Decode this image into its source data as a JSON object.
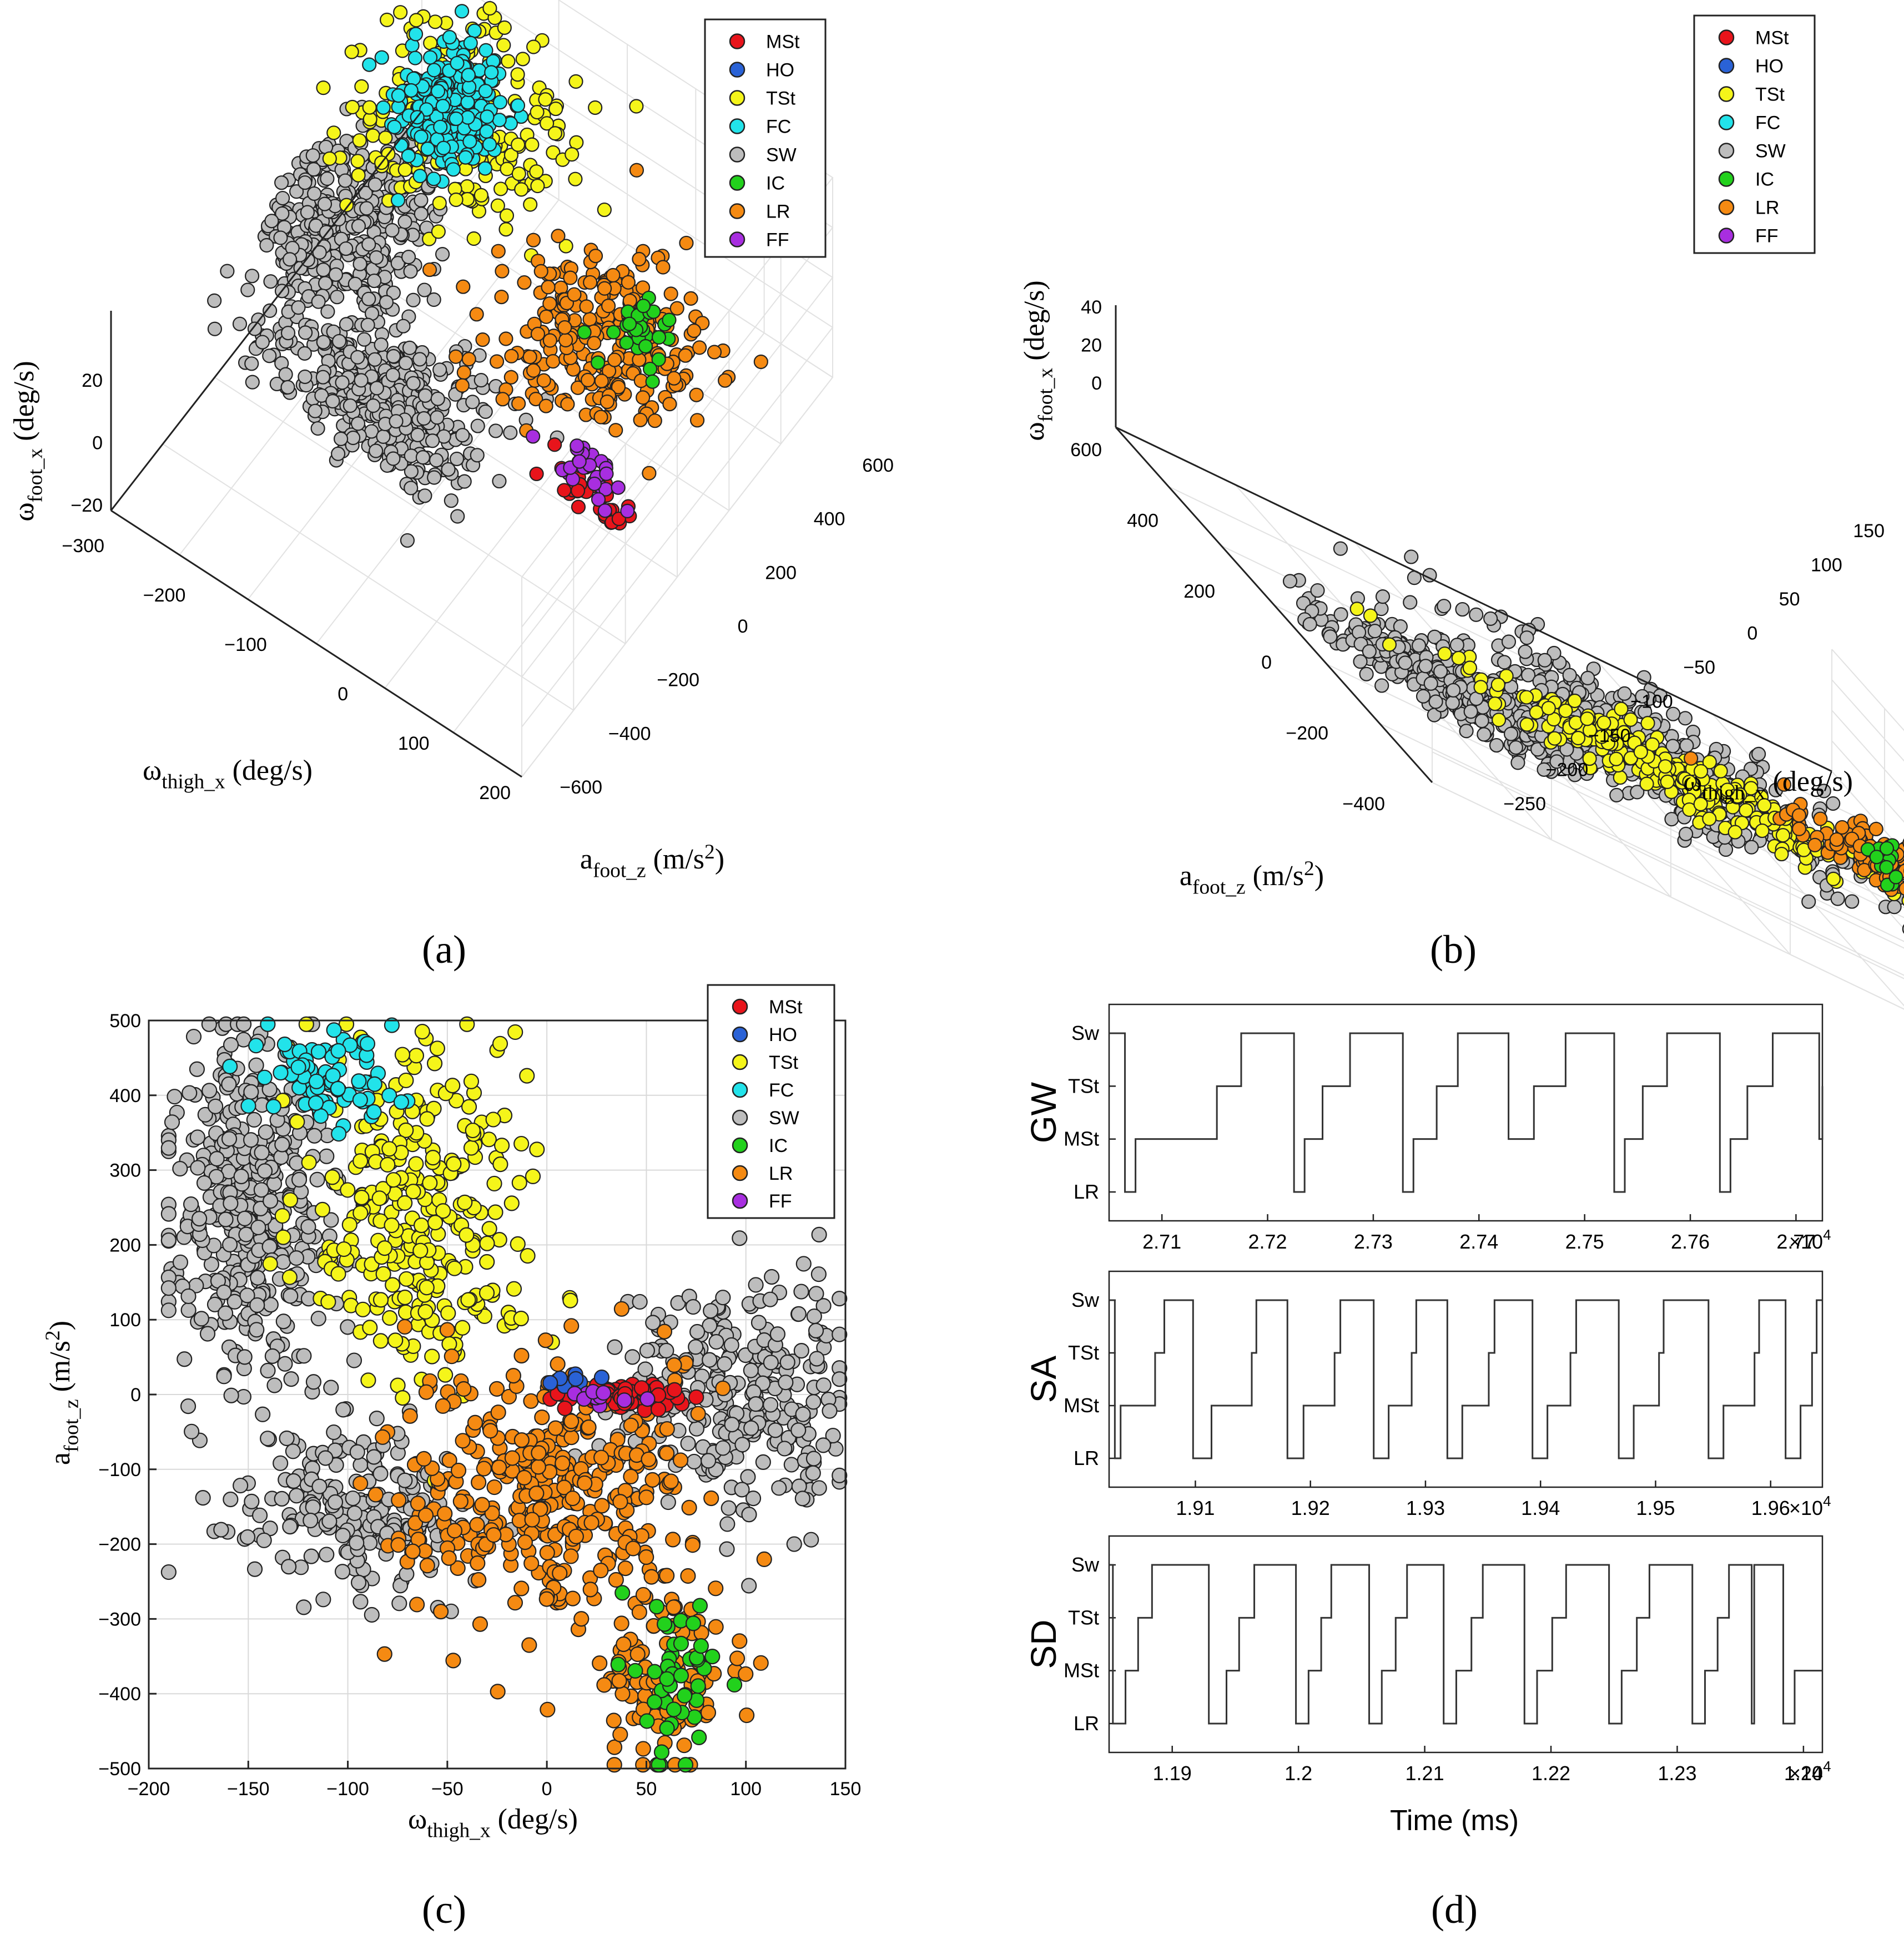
{
  "figure": {
    "panel_labels": [
      "(a)",
      "(b)",
      "(c)",
      "(d)"
    ],
    "legend": [
      {
        "label": "MSt",
        "color": "#e8141b"
      },
      {
        "label": "HO",
        "color": "#2a62d6"
      },
      {
        "label": "TSt",
        "color": "#f5f51a"
      },
      {
        "label": "FC",
        "color": "#22e3ea"
      },
      {
        "label": "SW",
        "color": "#bdbdbd"
      },
      {
        "label": "IC",
        "color": "#22d11c"
      },
      {
        "label": "LR",
        "color": "#f58a12"
      },
      {
        "label": "FF",
        "color": "#a82ee0"
      }
    ]
  },
  "chart_data": [
    {
      "id": "a",
      "type": "scatter",
      "projection": "3d",
      "xlabel": "ω",
      "xlabel_sub": "thigh_x",
      "xlabel_unit": " (deg/s)",
      "ylabel": "a",
      "ylabel_sub": "foot_z",
      "ylabel_unit": " (m/s",
      "ylabel_sup": "2",
      "ylabel_close": ")",
      "zlabel": "ω",
      "zlabel_sub": "foot_x",
      "zlabel_unit": " (deg/s)",
      "x_ticks": [
        "−300",
        "−200",
        "−100",
        "0",
        "100",
        "200"
      ],
      "y_ticks": [
        "600",
        "400",
        "200",
        "0",
        "−200",
        "−400",
        "−600"
      ],
      "z_ticks": [
        "20",
        "0",
        "−20"
      ],
      "xlim": [
        -300,
        200
      ],
      "ylim": [
        -600,
        600
      ],
      "zlim": [
        -25,
        35
      ],
      "clusters": [
        {
          "phase": "SW",
          "cx": -240,
          "cy": 100,
          "z": 0,
          "spread": [
            45,
            120
          ]
        },
        {
          "phase": "SW",
          "cx": -120,
          "cy": -120,
          "z": -10,
          "spread": [
            60,
            80
          ]
        },
        {
          "phase": "TSt",
          "cx": -160,
          "cy": 330,
          "z": 20,
          "spread": [
            60,
            120
          ]
        },
        {
          "phase": "FC",
          "cx": -200,
          "cy": 380,
          "z": 15,
          "spread": [
            25,
            60
          ]
        },
        {
          "phase": "LR",
          "cx": 60,
          "cy": 150,
          "z": 10,
          "spread": [
            60,
            110
          ]
        },
        {
          "phase": "IC",
          "cx": 90,
          "cy": 200,
          "z": 12,
          "spread": [
            20,
            40
          ]
        },
        {
          "phase": "MSt",
          "cx": 120,
          "cy": -80,
          "z": -5,
          "spread": [
            25,
            10
          ]
        },
        {
          "phase": "FF",
          "cx": 100,
          "cy": -40,
          "z": -4,
          "spread": [
            20,
            10
          ]
        }
      ]
    },
    {
      "id": "b",
      "type": "scatter",
      "projection": "3d",
      "xlabel": "ω",
      "xlabel_sub": "thigh_x",
      "xlabel_unit": " (deg/s)",
      "ylabel": "a",
      "ylabel_sub": "foot_z",
      "ylabel_unit": " (m/s",
      "ylabel_sup": "2",
      "ylabel_close": ")",
      "zlabel": "ω",
      "zlabel_sub": "foot_x",
      "zlabel_unit": " (deg/s)",
      "x_ticks": [
        "150",
        "100",
        "50",
        "0",
        "−50",
        "−100",
        "−150",
        "−200",
        "−250"
      ],
      "y_ticks": [
        "600",
        "400",
        "200",
        "0",
        "−200",
        "−400"
      ],
      "z_ticks": [
        "40",
        "20",
        "0"
      ],
      "xlim": [
        -250,
        150
      ],
      "ylim": [
        -400,
        600
      ],
      "zlim": [
        -10,
        45
      ],
      "clusters": [
        {
          "phase": "SW",
          "cx": -30,
          "cy": 50,
          "z": 0,
          "spread": [
            60,
            140
          ]
        },
        {
          "phase": "SW",
          "cx": -170,
          "cy": 250,
          "z": 5,
          "spread": [
            40,
            60
          ]
        },
        {
          "phase": "TSt",
          "cx": -80,
          "cy": 420,
          "z": 30,
          "spread": [
            60,
            60
          ]
        },
        {
          "phase": "LR",
          "cx": 80,
          "cy": 300,
          "z": 25,
          "spread": [
            40,
            60
          ]
        },
        {
          "phase": "IC",
          "cx": 90,
          "cy": 200,
          "z": 15,
          "spread": [
            10,
            30
          ]
        }
      ]
    },
    {
      "id": "c",
      "type": "scatter",
      "title": "",
      "xlabel": "ω",
      "xlabel_sub": "thigh_x",
      "xlabel_unit": " (deg/s)",
      "ylabel": "a",
      "ylabel_sub": "foot_z",
      "ylabel_unit": " (m/s",
      "ylabel_sup": "2",
      "ylabel_close": ")",
      "xlim": [
        -200,
        150
      ],
      "ylim": [
        -500,
        500
      ],
      "x_ticks": [
        -200,
        -150,
        -100,
        -50,
        0,
        50,
        100,
        150
      ],
      "y_ticks": [
        500,
        400,
        300,
        200,
        100,
        0,
        -100,
        -200,
        -300,
        -400,
        -500
      ],
      "x_tick_labels": [
        "−200",
        "−150",
        "−100",
        "−50",
        "0",
        "50",
        "100",
        "150"
      ],
      "y_tick_labels": [
        "500",
        "400",
        "300",
        "200",
        "100",
        "0",
        "−100",
        "−200",
        "−300",
        "−400",
        "−500"
      ],
      "grid": true,
      "legend_position": "top-right",
      "clusters": [
        {
          "phase": "SW",
          "cx": -150,
          "cy": 250,
          "sx": 20,
          "sy": 120,
          "n": 420
        },
        {
          "phase": "SW",
          "cx": -95,
          "cy": -150,
          "sx": 30,
          "sy": 60,
          "n": 220
        },
        {
          "phase": "SW",
          "cx": 95,
          "cy": 0,
          "sx": 28,
          "sy": 80,
          "n": 300
        },
        {
          "phase": "TSt",
          "cx": -65,
          "cy": 240,
          "sx": 28,
          "sy": 120,
          "n": 300
        },
        {
          "phase": "FC",
          "cx": -110,
          "cy": 420,
          "sx": 18,
          "sy": 35,
          "n": 80
        },
        {
          "phase": "LR",
          "cx": 0,
          "cy": -130,
          "sx": 35,
          "sy": 90,
          "n": 360
        },
        {
          "phase": "LR",
          "cx": 60,
          "cy": -380,
          "sx": 18,
          "sy": 60,
          "n": 110
        },
        {
          "phase": "IC",
          "cx": 65,
          "cy": -380,
          "sx": 12,
          "sy": 60,
          "n": 45
        },
        {
          "phase": "MSt",
          "cx": 35,
          "cy": 0,
          "sx": 15,
          "sy": 8,
          "n": 60
        },
        {
          "phase": "HO",
          "cx": 10,
          "cy": 20,
          "sx": 8,
          "sy": 5,
          "n": 8
        },
        {
          "phase": "FF",
          "cx": 25,
          "cy": -5,
          "sx": 10,
          "sy": 5,
          "n": 10
        }
      ]
    },
    {
      "id": "d",
      "type": "line",
      "subtitle": "step",
      "xlabel": "Time (ms)",
      "y_categories": [
        "LR",
        "MSt",
        "TSt",
        "Sw"
      ],
      "exponent_label": "×10",
      "exponent_power": "4",
      "rows": [
        {
          "name": "GW",
          "xlim": [
            2.705,
            2.7725
          ],
          "x_ticks": [
            "2.71",
            "2.72",
            "2.73",
            "2.74",
            "2.75",
            "2.76",
            "2.77"
          ],
          "x_tick_values": [
            2.71,
            2.72,
            2.73,
            2.74,
            2.75,
            2.76,
            2.77
          ],
          "steps": [
            [
              2.705,
              3
            ],
            [
              2.7065,
              0
            ],
            [
              2.7075,
              1
            ],
            [
              2.7152,
              2
            ],
            [
              2.7175,
              3
            ],
            [
              2.7205,
              3
            ],
            [
              2.7225,
              0
            ],
            [
              2.7235,
              1
            ],
            [
              2.7252,
              2
            ],
            [
              2.7278,
              3
            ],
            [
              2.7315,
              3
            ],
            [
              2.7328,
              0
            ],
            [
              2.7338,
              1
            ],
            [
              2.736,
              2
            ],
            [
              2.738,
              3
            ],
            [
              2.7418,
              3
            ],
            [
              2.7428,
              1
            ],
            [
              2.7452,
              2
            ],
            [
              2.7482,
              3
            ],
            [
              2.7515,
              3
            ],
            [
              2.7528,
              0
            ],
            [
              2.7538,
              1
            ],
            [
              2.7555,
              2
            ],
            [
              2.7578,
              3
            ],
            [
              2.7615,
              3
            ],
            [
              2.7628,
              0
            ],
            [
              2.7638,
              1
            ],
            [
              2.7654,
              2
            ],
            [
              2.7678,
              3
            ],
            [
              2.7712,
              3
            ],
            [
              2.7722,
              1
            ],
            [
              2.7725,
              2
            ]
          ]
        },
        {
          "name": "SA",
          "xlim": [
            1.9025,
            1.9645
          ],
          "x_ticks": [
            "1.91",
            "1.92",
            "1.93",
            "1.94",
            "1.95",
            "1.96"
          ],
          "x_tick_values": [
            1.91,
            1.92,
            1.93,
            1.94,
            1.95,
            1.96
          ],
          "steps": [
            [
              1.9025,
              3
            ],
            [
              1.903,
              0
            ],
            [
              1.9035,
              1
            ],
            [
              1.9065,
              2
            ],
            [
              1.9073,
              3
            ],
            [
              1.9093,
              3
            ],
            [
              1.9098,
              0
            ],
            [
              1.9114,
              1
            ],
            [
              1.9149,
              2
            ],
            [
              1.9153,
              3
            ],
            [
              1.9175,
              3
            ],
            [
              1.918,
              0
            ],
            [
              1.9194,
              1
            ],
            [
              1.9221,
              2
            ],
            [
              1.9226,
              3
            ],
            [
              1.925,
              3
            ],
            [
              1.9255,
              0
            ],
            [
              1.9268,
              1
            ],
            [
              1.9288,
              2
            ],
            [
              1.9292,
              3
            ],
            [
              1.9314,
              3
            ],
            [
              1.9319,
              0
            ],
            [
              1.9332,
              1
            ],
            [
              1.9355,
              2
            ],
            [
              1.936,
              3
            ],
            [
              1.9388,
              3
            ],
            [
              1.9393,
              0
            ],
            [
              1.9406,
              1
            ],
            [
              1.9426,
              2
            ],
            [
              1.9431,
              3
            ],
            [
              1.9463,
              3
            ],
            [
              1.9468,
              0
            ],
            [
              1.9481,
              1
            ],
            [
              1.9503,
              2
            ],
            [
              1.9507,
              3
            ],
            [
              1.9541,
              3
            ],
            [
              1.9546,
              0
            ],
            [
              1.9559,
              1
            ],
            [
              1.9586,
              2
            ],
            [
              1.959,
              3
            ],
            [
              1.9608,
              3
            ],
            [
              1.9613,
              0
            ],
            [
              1.9626,
              1
            ],
            [
              1.9636,
              2
            ],
            [
              1.964,
              3
            ],
            [
              1.9645,
              3
            ]
          ]
        },
        {
          "name": "SD",
          "xlim": [
            1.185,
            1.2415
          ],
          "x_ticks": [
            "1.19",
            "1.2",
            "1.21",
            "1.22",
            "1.23",
            "1.24"
          ],
          "x_tick_values": [
            1.19,
            1.2,
            1.21,
            1.22,
            1.23,
            1.24
          ],
          "steps": [
            [
              1.185,
              3
            ],
            [
              1.1853,
              0
            ],
            [
              1.1863,
              1
            ],
            [
              1.1873,
              2
            ],
            [
              1.1884,
              3
            ],
            [
              1.1925,
              3
            ],
            [
              1.1929,
              0
            ],
            [
              1.1943,
              1
            ],
            [
              1.1953,
              2
            ],
            [
              1.1965,
              3
            ],
            [
              1.1994,
              3
            ],
            [
              1.1998,
              0
            ],
            [
              1.2008,
              1
            ],
            [
              1.2018,
              2
            ],
            [
              1.2026,
              3
            ],
            [
              1.2052,
              3
            ],
            [
              1.2056,
              0
            ],
            [
              1.2066,
              1
            ],
            [
              1.2077,
              2
            ],
            [
              1.2086,
              3
            ],
            [
              1.2111,
              3
            ],
            [
              1.2115,
              0
            ],
            [
              1.2125,
              1
            ],
            [
              1.2137,
              2
            ],
            [
              1.2146,
              3
            ],
            [
              1.2175,
              3
            ],
            [
              1.2179,
              0
            ],
            [
              1.2189,
              1
            ],
            [
              1.2201,
              2
            ],
            [
              1.2212,
              3
            ],
            [
              1.2242,
              3
            ],
            [
              1.2246,
              0
            ],
            [
              1.2256,
              1
            ],
            [
              1.2268,
              2
            ],
            [
              1.2278,
              3
            ],
            [
              1.2308,
              3
            ],
            [
              1.2312,
              0
            ],
            [
              1.2322,
              1
            ],
            [
              1.2332,
              2
            ],
            [
              1.2341,
              3
            ],
            [
              1.2357,
              3
            ],
            [
              1.2359,
              0
            ],
            [
              1.2361,
              3
            ],
            [
              1.2378,
              3
            ],
            [
              1.2384,
              0
            ],
            [
              1.2393,
              1
            ],
            [
              1.2415,
              1
            ]
          ]
        }
      ]
    }
  ]
}
